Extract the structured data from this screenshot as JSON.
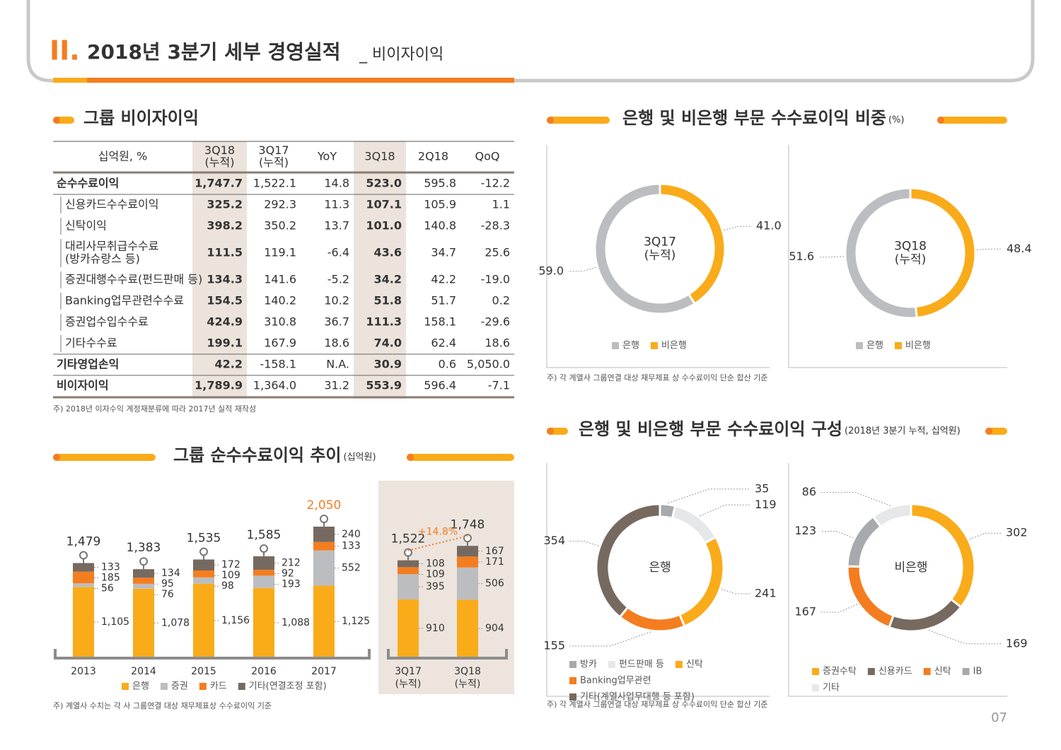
{
  "header": {
    "number": "II.",
    "title": "2018년 3분기 세부 경영실적",
    "subtitle": "_ 비이자이익",
    "page": "07"
  },
  "table": {
    "title": "그룹 비이자이익",
    "columns": [
      [
        "십억원, %"
      ],
      [
        "3Q18",
        "(누적)"
      ],
      [
        "3Q17",
        "(누적)"
      ],
      [
        "YoY"
      ],
      [
        "3Q18"
      ],
      [
        "2Q18"
      ],
      [
        "QoQ"
      ]
    ],
    "rows": [
      {
        "label": [
          "순수수료이익"
        ],
        "cells": [
          "1,747.7",
          "1,522.1",
          "14.8",
          "523.0",
          "595.8",
          "-12.2"
        ],
        "items": [
          {
            "label": [
              "신용카드수수료이익"
            ],
            "cells": [
              "325.2",
              "292.3",
              "11.3",
              "107.1",
              "105.9",
              "1.1"
            ]
          },
          {
            "label": [
              "신탁이익"
            ],
            "cells": [
              "398.2",
              "350.2",
              "13.7",
              "101.0",
              "140.8",
              "-28.3"
            ]
          },
          {
            "label": [
              "대리사무취급수수료",
              "(방카슈랑스 등)"
            ],
            "cells": [
              "111.5",
              "119.1",
              "-6.4",
              "43.6",
              "34.7",
              "25.6"
            ]
          },
          {
            "label": [
              "증권대행수수료(펀드판매 등)"
            ],
            "cells": [
              "134.3",
              "141.6",
              "-5.2",
              "34.2",
              "42.2",
              "-19.0"
            ]
          },
          {
            "label": [
              "Banking업무관련수수료"
            ],
            "cells": [
              "154.5",
              "140.2",
              "10.2",
              "51.8",
              "51.7",
              "0.2"
            ]
          },
          {
            "label": [
              "증권업수입수수료"
            ],
            "cells": [
              "424.9",
              "310.8",
              "36.7",
              "111.3",
              "158.1",
              "-29.6"
            ]
          },
          {
            "label": [
              "기타수수료"
            ],
            "cells": [
              "199.1",
              "167.9",
              "18.6",
              "74.0",
              "62.4",
              "18.6"
            ]
          }
        ]
      },
      {
        "label": [
          "기타영업손익"
        ],
        "cells": [
          "42.2",
          "-158.1",
          "N.A.",
          "30.9",
          "0.6",
          "5,050.0"
        ]
      },
      {
        "label": [
          "비이자이익"
        ],
        "cells": [
          "1,789.9",
          "1,364.0",
          "31.2",
          "553.9",
          "596.4",
          "-7.1"
        ]
      }
    ],
    "note": "주) 2018년 이자수익 계정재분류에 따라 2017년 실적 재작성"
  },
  "sections": [
    {
      "title": "은행 및 비은행 부문 수수료이익 비중",
      "unit": "(%)",
      "note": "주) 각 계열사 그룹연결 대상 재무제표 상 수수료이익 단순 합산 기준"
    },
    {
      "title": "은행 및 비은행 부문 수수료이익 구성",
      "unit": "(2018년 3분기 누적, 십억원)",
      "note": "주) 각 계열사 그룹연결 대상 재무제표 상 수수료이익 단순 합산 기준"
    }
  ],
  "chart_data": [
    {
      "type": "bar",
      "stacked": true,
      "title": "그룹 순수수료이익 추이",
      "unit": "(십억원)",
      "categories": [
        [
          "2013"
        ],
        [
          "2014"
        ],
        [
          "2015"
        ],
        [
          "2016"
        ],
        [
          "2017"
        ],
        [
          "3Q17",
          "(누적)"
        ],
        [
          "3Q18",
          "(누적)"
        ]
      ],
      "series": [
        {
          "name": "은행",
          "color": "#f9ab1a",
          "values": [
            1105,
            1078,
            1156,
            1088,
            1125,
            910,
            904
          ],
          "value_labels": [
            "1,105",
            "1,078",
            "1,156",
            "1,088",
            "1,125",
            "910",
            "904"
          ]
        },
        {
          "name": "증권",
          "color": "#bcbdc0",
          "values": [
            56,
            76,
            98,
            193,
            552,
            395,
            506
          ]
        },
        {
          "name": "카드",
          "color": "#f47d20",
          "values": [
            185,
            95,
            109,
            92,
            133,
            109,
            171
          ]
        },
        {
          "name": "기타(연결조정 포함)",
          "color": "#766a60",
          "values": [
            133,
            134,
            172,
            212,
            240,
            108,
            167
          ]
        }
      ],
      "totals": [
        1479,
        1383,
        1535,
        1585,
        2050,
        1522,
        1748
      ],
      "total_labels": [
        "1,479",
        "1,383",
        "1,535",
        "1,585",
        "2,050",
        "1,522",
        "1,748"
      ],
      "annotation": "+14.8%",
      "note": "주) 계열사 수치는 각 사 그룹연결 대상 재무제표상 수수료이익 기준"
    },
    {
      "type": "pie",
      "donut": true,
      "clockwise": false,
      "center_label": [
        "3Q17",
        "(누적)"
      ],
      "categories": [
        "은행",
        "비은행"
      ],
      "values": [
        59.0,
        41.0
      ],
      "value_labels": [
        "59.0",
        "41.0"
      ],
      "colors": [
        "#bcbdc0",
        "#f9ab1a"
      ]
    },
    {
      "type": "pie",
      "donut": true,
      "clockwise": false,
      "center_label": [
        "3Q18",
        "(누적)"
      ],
      "categories": [
        "은행",
        "비은행"
      ],
      "values": [
        51.6,
        48.4
      ],
      "colors": [
        "#bcbdc0",
        "#f9ab1a"
      ]
    },
    {
      "type": "pie",
      "donut": true,
      "clockwise": true,
      "center_label": [
        "은행"
      ],
      "categories": [
        "방카",
        "펀드판매 등",
        "신탁",
        "Banking업무관련",
        "기타(계열사업무대행 등 포함)"
      ],
      "values": [
        35,
        119,
        241,
        155,
        354
      ],
      "colors": [
        "#a7a9ac",
        "#e6e7e8",
        "#f9ab1a",
        "#f47d20",
        "#766a60"
      ]
    },
    {
      "type": "pie",
      "donut": true,
      "clockwise": true,
      "center_label": [
        "비은행"
      ],
      "categories": [
        "증권수탁",
        "신용카드",
        "신탁",
        "IB",
        "기타"
      ],
      "values": [
        302,
        169,
        167,
        123,
        86
      ],
      "colors": [
        "#f9ab1a",
        "#766a60",
        "#f47d20",
        "#a7a9ac",
        "#e6e7e8"
      ]
    }
  ]
}
